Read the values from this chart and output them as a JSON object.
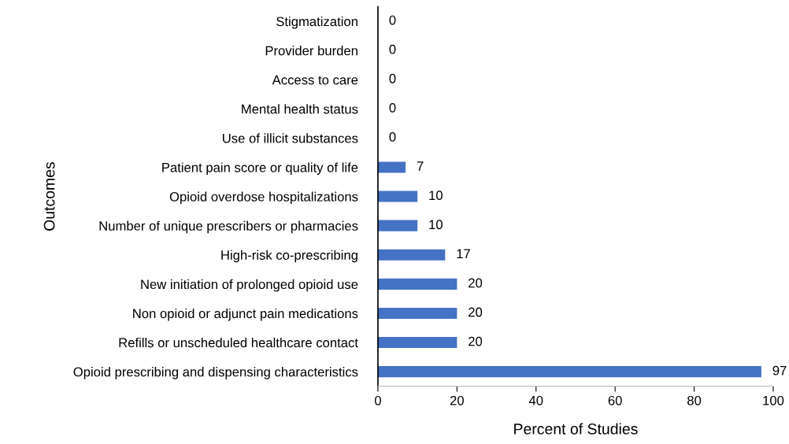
{
  "chart_data": {
    "type": "bar",
    "orientation": "horizontal",
    "categories": [
      "Stigmatization",
      "Provider burden",
      "Access to care",
      "Mental health status",
      "Use of illicit substances",
      "Patient pain score or quality of life",
      "Opioid overdose hospitalizations",
      "Number of unique prescribers or pharmacies",
      "High-risk co-prescribing",
      "New initiation of prolonged opioid use",
      "Non opioid or adjunct pain medications",
      "Refills or unscheduled healthcare contact",
      "Opioid prescribing and dispensing characteristics"
    ],
    "values": [
      0,
      0,
      0,
      0,
      0,
      7,
      10,
      10,
      17,
      20,
      20,
      20,
      97
    ],
    "color": "#4472c4",
    "xlabel": "Percent of Studies",
    "ylabel": "Outcomes",
    "xlim": [
      0,
      100
    ],
    "xticks": [
      0,
      20,
      40,
      60,
      80,
      100
    ],
    "data_labels": true,
    "grid": false,
    "legend": false
  }
}
